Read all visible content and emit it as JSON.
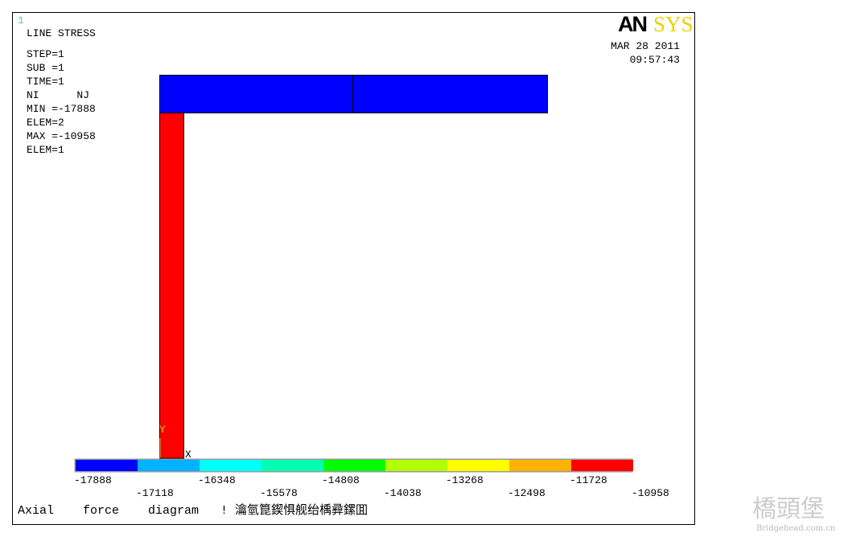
{
  "window_number": "1",
  "plot_title": "LINE STRESS",
  "info": [
    "STEP=1",
    "SUB =1",
    "TIME=1",
    "NI      NJ",
    "MIN =-17888",
    "ELEM=2",
    "MAX =-10958",
    "ELEM=1"
  ],
  "logo": {
    "an": "AN",
    "sys": "SYS"
  },
  "date": "MAR 28 2011",
  "time": "09:57:43",
  "axis_labels": {
    "y": "Y",
    "x": "X"
  },
  "legend": {
    "labels": [
      "-17888",
      "-17118",
      "-16348",
      "-15578",
      "-14808",
      "-14038",
      "-13268",
      "-12498",
      "-11728",
      "-10958"
    ],
    "colors": [
      "#0000ff",
      "#00b2ff",
      "#00ffff",
      "#00ffb2",
      "#00ff00",
      "#b2ff00",
      "#ffff00",
      "#ffb200",
      "#ff0000"
    ]
  },
  "caption": "Axial    force    diagram   ! 瀹氫箟鍥惧舰绐楀彛鏍囬",
  "watermark": {
    "main": "橋頭堡",
    "site": "Bridgehead.com.cn"
  }
}
